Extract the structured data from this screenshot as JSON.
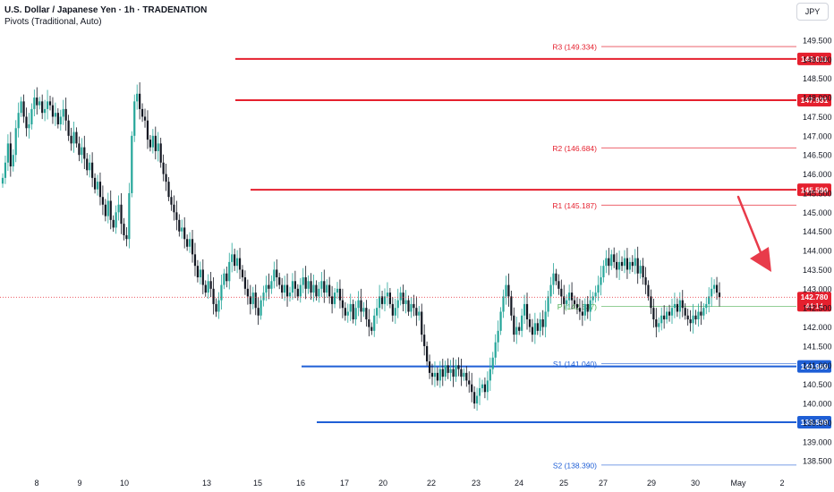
{
  "header": {
    "title": "U.S. Dollar / Japanese Yen · 1h · TRADENATION",
    "subtitle": "Pivots (Traditional, Auto)",
    "currency": "JPY"
  },
  "colors": {
    "up": "#26a69a",
    "down": "#131722",
    "resistance": "#e5202e",
    "support": "#1f5fd6",
    "pivot": "#4caf50",
    "pivot_label": "#e5202e",
    "support_label": "#1f5fd6",
    "arrow": "#e83b4a",
    "price_line": "#e5202e"
  },
  "chart_data": {
    "type": "candlestick",
    "ylim": [
      138.2,
      149.85
    ],
    "yticks": [
      "138.500",
      "139.000",
      "139.500",
      "140.000",
      "140.500",
      "141.000",
      "141.500",
      "142.000",
      "142.500",
      "143.000",
      "143.500",
      "144.000",
      "144.500",
      "145.000",
      "145.500",
      "146.000",
      "146.500",
      "147.000",
      "147.500",
      "148.000",
      "148.500",
      "149.000",
      "149.500"
    ],
    "xticks": [
      "8",
      "9",
      "10",
      "13",
      "15",
      "16",
      "17",
      "20",
      "22",
      "23",
      "24",
      "25",
      "27",
      "29",
      "30",
      "May",
      "2"
    ],
    "pivots": [
      {
        "label": "R3 (149.334)",
        "value": 149.334,
        "role": "resistance"
      },
      {
        "label": "R2 (146.684)",
        "value": 146.684,
        "role": "resistance"
      },
      {
        "label": "R1 (145.187)",
        "value": 145.187,
        "role": "resistance"
      },
      {
        "label": "P (142.537)",
        "value": 142.537,
        "role": "pivot"
      },
      {
        "label": "S1 (141.040)",
        "value": 141.04,
        "role": "support"
      },
      {
        "label": "S2 (138.390)",
        "value": 138.39,
        "role": "support"
      }
    ],
    "levels": [
      {
        "label": "149.011",
        "value": 149.011,
        "role": "resistance"
      },
      {
        "label": "147.931",
        "value": 147.931,
        "role": "resistance"
      },
      {
        "label": "145.590",
        "value": 145.59,
        "role": "resistance"
      },
      {
        "label": "140.969",
        "value": 140.969,
        "role": "support"
      },
      {
        "label": "139.509",
        "value": 139.509,
        "role": "support"
      }
    ],
    "current": {
      "price": "142.780",
      "value": 142.78,
      "countdown": "44:14"
    },
    "closes": [
      145.9,
      146.3,
      146.8,
      146.2,
      146.5,
      147.2,
      147.6,
      147.9,
      147.5,
      147.2,
      147.3,
      147.7,
      148.0,
      147.8,
      147.9,
      147.6,
      147.7,
      147.9,
      147.8,
      147.5,
      147.6,
      147.3,
      147.5,
      147.7,
      147.4,
      147.0,
      146.8,
      147.1,
      146.8,
      146.5,
      146.7,
      146.4,
      146.1,
      146.3,
      145.9,
      145.6,
      145.8,
      145.4,
      145.2,
      144.9,
      145.3,
      144.8,
      144.6,
      145.0,
      145.2,
      144.7,
      144.4,
      144.3,
      145.5,
      147.0,
      147.9,
      148.1,
      147.7,
      147.5,
      147.4,
      146.9,
      146.7,
      147.0,
      146.6,
      146.8,
      146.3,
      146.0,
      145.8,
      145.4,
      145.2,
      145.0,
      144.8,
      144.5,
      144.6,
      144.3,
      144.1,
      144.3,
      143.9,
      143.6,
      143.3,
      143.5,
      143.1,
      142.9,
      143.2,
      143.0,
      142.6,
      142.4,
      142.7,
      143.1,
      143.4,
      143.2,
      143.7,
      143.9,
      143.6,
      143.8,
      143.5,
      143.3,
      143.0,
      142.8,
      142.6,
      142.9,
      142.5,
      142.3,
      142.7,
      142.9,
      143.1,
      143.0,
      143.2,
      143.5,
      143.3,
      143.1,
      142.9,
      143.1,
      142.8,
      142.9,
      143.2,
      143.0,
      142.8,
      143.1,
      143.3,
      143.0,
      143.2,
      142.9,
      143.1,
      142.8,
      143.0,
      143.2,
      142.9,
      143.1,
      142.8,
      142.6,
      142.9,
      143.0,
      142.7,
      142.5,
      142.3,
      142.4,
      142.6,
      142.2,
      142.5,
      142.7,
      142.4,
      142.5,
      142.2,
      142.0,
      141.9,
      142.3,
      142.5,
      142.8,
      142.6,
      142.8,
      142.9,
      142.6,
      142.3,
      142.5,
      142.7,
      142.9,
      142.6,
      142.7,
      142.4,
      142.6,
      142.5,
      142.3,
      142.4,
      141.8,
      141.5,
      141.1,
      140.8,
      140.7,
      140.8,
      140.6,
      140.9,
      140.7,
      141.0,
      140.8,
      140.9,
      140.7,
      141.0,
      140.9,
      140.7,
      140.8,
      140.6,
      140.5,
      140.3,
      140.0,
      140.2,
      140.4,
      140.5,
      140.3,
      140.6,
      140.9,
      141.2,
      141.6,
      141.9,
      142.4,
      142.8,
      143.1,
      142.8,
      142.3,
      141.8,
      142.0,
      141.9,
      142.3,
      142.6,
      142.2,
      142.0,
      141.8,
      142.1,
      141.9,
      142.2,
      142.0,
      142.4,
      142.8,
      143.1,
      143.4,
      143.2,
      143.0,
      142.8,
      142.6,
      142.7,
      142.9,
      142.7,
      142.6,
      142.5,
      142.4,
      142.3,
      142.6,
      142.4,
      142.7,
      142.8,
      142.9,
      143.1,
      143.3,
      143.6,
      143.8,
      143.6,
      143.9,
      143.7,
      143.5,
      143.7,
      143.6,
      143.8,
      143.5,
      143.7,
      143.6,
      143.8,
      143.4,
      143.6,
      143.3,
      143.1,
      142.8,
      142.5,
      142.2,
      142.0,
      142.1,
      142.3,
      142.2,
      142.4,
      142.3,
      142.5,
      142.6,
      142.4,
      142.7,
      142.5,
      142.3,
      142.2,
      142.1,
      142.3,
      142.2,
      142.4,
      142.3,
      142.5,
      142.6,
      142.8,
      143.0,
      143.1,
      142.9,
      142.78
    ]
  }
}
